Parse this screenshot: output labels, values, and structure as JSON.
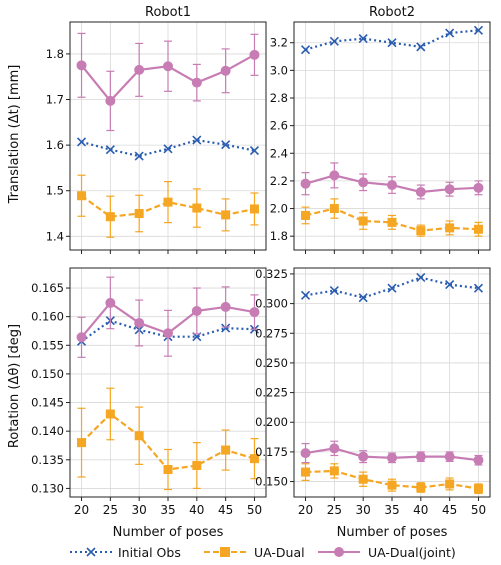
{
  "chart_data": [
    {
      "type": "line",
      "title": "Robot1",
      "xlabel": "",
      "ylabel": "Translation (Δt) [mm]",
      "x": [
        20,
        25,
        30,
        35,
        40,
        45,
        50
      ],
      "x_ticks": [
        "20",
        "25",
        "30",
        "35",
        "40",
        "45",
        "50"
      ],
      "ylim": [
        1.37,
        1.87
      ],
      "y_ticks": [
        "1.4",
        "1.5",
        "1.6",
        "1.7",
        "1.8"
      ],
      "grid": true,
      "series": [
        {
          "name": "Initial Obs",
          "color": "#2a5db0",
          "marker": "x",
          "linestyle": "dotted",
          "values": [
            1.607,
            1.59,
            1.576,
            1.592,
            1.611,
            1.601,
            1.588
          ],
          "err": [
            0,
            0,
            0,
            0,
            0,
            0,
            0
          ]
        },
        {
          "name": "UA-Dual",
          "color": "#f5a623",
          "marker": "square",
          "linestyle": "dashed",
          "values": [
            1.489,
            1.443,
            1.45,
            1.475,
            1.462,
            1.447,
            1.46
          ],
          "err": [
            0.045,
            0.045,
            0.04,
            0.045,
            0.042,
            0.035,
            0.035
          ]
        },
        {
          "name": "UA-Dual(joint)",
          "color": "#c77db4",
          "marker": "circle",
          "linestyle": "solid",
          "values": [
            1.775,
            1.697,
            1.765,
            1.773,
            1.737,
            1.763,
            1.798
          ],
          "err": [
            0.07,
            0.065,
            0.058,
            0.055,
            0.04,
            0.048,
            0.045
          ]
        }
      ]
    },
    {
      "type": "line",
      "title": "Robot2",
      "xlabel": "",
      "ylabel": "",
      "x": [
        20,
        25,
        30,
        35,
        40,
        45,
        50
      ],
      "x_ticks": [
        "20",
        "25",
        "30",
        "35",
        "40",
        "45",
        "50"
      ],
      "ylim": [
        1.7,
        3.35
      ],
      "y_ticks": [
        "1.8",
        "2.0",
        "2.2",
        "2.4",
        "2.6",
        "2.8",
        "3.0",
        "3.2"
      ],
      "grid": true,
      "series": [
        {
          "name": "Initial Obs",
          "color": "#2a5db0",
          "marker": "x",
          "linestyle": "dotted",
          "values": [
            3.15,
            3.21,
            3.23,
            3.2,
            3.17,
            3.27,
            3.29
          ],
          "err": [
            0,
            0,
            0,
            0,
            0,
            0,
            0
          ]
        },
        {
          "name": "UA-Dual",
          "color": "#f5a623",
          "marker": "square",
          "linestyle": "dashed",
          "values": [
            1.95,
            2.0,
            1.91,
            1.9,
            1.84,
            1.86,
            1.85
          ],
          "err": [
            0.06,
            0.07,
            0.06,
            0.05,
            0.04,
            0.05,
            0.05
          ]
        },
        {
          "name": "UA-Dual(joint)",
          "color": "#c77db4",
          "marker": "circle",
          "linestyle": "solid",
          "values": [
            2.18,
            2.24,
            2.19,
            2.17,
            2.12,
            2.14,
            2.15
          ],
          "err": [
            0.08,
            0.09,
            0.06,
            0.06,
            0.05,
            0.05,
            0.05
          ]
        }
      ]
    },
    {
      "type": "line",
      "title": "",
      "xlabel": "Number of poses",
      "ylabel": "Rotation (Δθ) [deg]",
      "x": [
        20,
        25,
        30,
        35,
        40,
        45,
        50
      ],
      "x_ticks": [
        "20",
        "25",
        "30",
        "35",
        "40",
        "45",
        "50"
      ],
      "ylim": [
        0.1285,
        0.1685
      ],
      "y_ticks": [
        "0.130",
        "0.135",
        "0.140",
        "0.145",
        "0.150",
        "0.155",
        "0.160",
        "0.165"
      ],
      "grid": true,
      "series": [
        {
          "name": "Initial Obs",
          "color": "#2a5db0",
          "marker": "x",
          "linestyle": "dotted",
          "values": [
            0.1557,
            0.1593,
            0.1577,
            0.1565,
            0.1565,
            0.158,
            0.1578
          ],
          "err": [
            0,
            0,
            0,
            0,
            0,
            0,
            0
          ]
        },
        {
          "name": "UA-Dual",
          "color": "#f5a623",
          "marker": "square",
          "linestyle": "dashed",
          "values": [
            0.138,
            0.143,
            0.1392,
            0.1333,
            0.134,
            0.1367,
            0.1352
          ],
          "err": [
            0.006,
            0.0045,
            0.005,
            0.0035,
            0.004,
            0.0035,
            0.0035
          ]
        },
        {
          "name": "UA-Dual(joint)",
          "color": "#c77db4",
          "marker": "circle",
          "linestyle": "solid",
          "values": [
            0.1564,
            0.1624,
            0.1589,
            0.1571,
            0.161,
            0.1617,
            0.1608
          ],
          "err": [
            0.0035,
            0.0045,
            0.004,
            0.004,
            0.004,
            0.0035,
            0.003
          ]
        }
      ]
    },
    {
      "type": "line",
      "title": "",
      "xlabel": "Number of poses",
      "ylabel": "",
      "x": [
        20,
        25,
        30,
        35,
        40,
        45,
        50
      ],
      "x_ticks": [
        "20",
        "25",
        "30",
        "35",
        "40",
        "45",
        "50"
      ],
      "ylim": [
        0.137,
        0.33
      ],
      "y_ticks": [
        "0.150",
        "0.175",
        "0.200",
        "0.225",
        "0.250",
        "0.275",
        "0.300",
        "0.325"
      ],
      "grid": true,
      "series": [
        {
          "name": "Initial Obs",
          "color": "#2a5db0",
          "marker": "x",
          "linestyle": "dotted",
          "values": [
            0.307,
            0.311,
            0.305,
            0.313,
            0.322,
            0.316,
            0.313
          ],
          "err": [
            0,
            0,
            0,
            0,
            0,
            0,
            0
          ]
        },
        {
          "name": "UA-Dual",
          "color": "#f5a623",
          "marker": "square",
          "linestyle": "dashed",
          "values": [
            0.158,
            0.159,
            0.152,
            0.147,
            0.145,
            0.148,
            0.144
          ],
          "err": [
            0.007,
            0.006,
            0.006,
            0.005,
            0.004,
            0.005,
            0.004
          ]
        },
        {
          "name": "UA-Dual(joint)",
          "color": "#c77db4",
          "marker": "circle",
          "linestyle": "solid",
          "values": [
            0.174,
            0.178,
            0.171,
            0.17,
            0.171,
            0.171,
            0.168
          ],
          "err": [
            0.008,
            0.006,
            0.005,
            0.004,
            0.004,
            0.004,
            0.004
          ]
        }
      ]
    }
  ],
  "legend": {
    "placement": "bottom",
    "items": [
      {
        "label": "Initial Obs",
        "color": "#2a5db0",
        "marker": "x",
        "linestyle": "dotted"
      },
      {
        "label": "UA-Dual",
        "color": "#f5a623",
        "marker": "square",
        "linestyle": "dashed"
      },
      {
        "label": "UA-Dual(joint)",
        "color": "#c77db4",
        "marker": "circle",
        "linestyle": "solid"
      }
    ]
  }
}
